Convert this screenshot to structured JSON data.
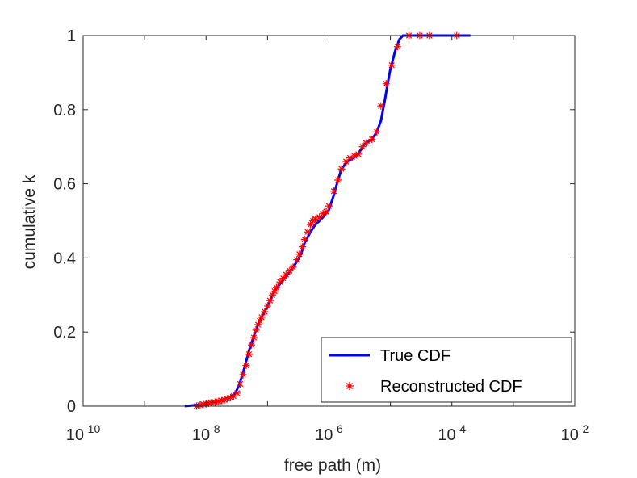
{
  "chart_data": {
    "type": "line",
    "xscale": "log",
    "xlabel": "free path (m)",
    "ylabel": "cumulative k",
    "xlim": [
      1e-10,
      0.01
    ],
    "ylim": [
      0,
      1
    ],
    "x_ticks": [
      {
        "base": "10",
        "exp": "-10",
        "value": 1e-10
      },
      {
        "base": "10",
        "exp": "-8",
        "value": 1e-08
      },
      {
        "base": "10",
        "exp": "-6",
        "value": 1e-06
      },
      {
        "base": "10",
        "exp": "-4",
        "value": 0.0001
      },
      {
        "base": "10",
        "exp": "-2",
        "value": 0.01
      }
    ],
    "y_ticks": [
      "0",
      "0.2",
      "0.4",
      "0.6",
      "0.8",
      "1"
    ],
    "grid": false,
    "legend_position": "bottom-right",
    "series": [
      {
        "name": "True CDF",
        "style": "line",
        "color": "#0000ff",
        "points": [
          [
            4.5e-09,
            0.0
          ],
          [
            7e-09,
            0.003
          ],
          [
            1e-08,
            0.006
          ],
          [
            1.5e-08,
            0.012
          ],
          [
            2e-08,
            0.018
          ],
          [
            2.5e-08,
            0.025
          ],
          [
            3e-08,
            0.035
          ],
          [
            3.5e-08,
            0.06
          ],
          [
            4e-08,
            0.09
          ],
          [
            5e-08,
            0.15
          ],
          [
            6e-08,
            0.19
          ],
          [
            7e-08,
            0.22
          ],
          [
            8e-08,
            0.24
          ],
          [
            1e-07,
            0.27
          ],
          [
            1.3e-07,
            0.31
          ],
          [
            1.6e-07,
            0.33
          ],
          [
            2e-07,
            0.35
          ],
          [
            2.5e-07,
            0.37
          ],
          [
            3e-07,
            0.39
          ],
          [
            3.5e-07,
            0.41
          ],
          [
            4e-07,
            0.44
          ],
          [
            5e-07,
            0.47
          ],
          [
            6e-07,
            0.49
          ],
          [
            7e-07,
            0.5
          ],
          [
            8e-07,
            0.51
          ],
          [
            1e-06,
            0.53
          ],
          [
            1.2e-06,
            0.57
          ],
          [
            1.4e-06,
            0.61
          ],
          [
            1.6e-06,
            0.64
          ],
          [
            2e-06,
            0.66
          ],
          [
            2.5e-06,
            0.67
          ],
          [
            3e-06,
            0.68
          ],
          [
            3.5e-06,
            0.7
          ],
          [
            4e-06,
            0.71
          ],
          [
            5e-06,
            0.72
          ],
          [
            6e-06,
            0.74
          ],
          [
            7e-06,
            0.77
          ],
          [
            8e-06,
            0.82
          ],
          [
            9e-06,
            0.87
          ],
          [
            1e-05,
            0.91
          ],
          [
            1.2e-05,
            0.96
          ],
          [
            1.4e-05,
            0.99
          ],
          [
            1.6e-05,
            1.0
          ],
          [
            0.0002,
            1.0
          ]
        ]
      },
      {
        "name": "Reconstructed CDF",
        "style": "marker",
        "marker": "asterisk",
        "color": "#ff0000",
        "points": [
          [
            7e-09,
            0.0
          ],
          [
            8e-09,
            0.003
          ],
          [
            9e-09,
            0.005
          ],
          [
            1e-08,
            0.006
          ],
          [
            1.1e-08,
            0.008
          ],
          [
            1.2e-08,
            0.009
          ],
          [
            1.4e-08,
            0.011
          ],
          [
            1.6e-08,
            0.013
          ],
          [
            1.8e-08,
            0.015
          ],
          [
            2e-08,
            0.017
          ],
          [
            2.2e-08,
            0.02
          ],
          [
            2.5e-08,
            0.023
          ],
          [
            2.8e-08,
            0.027
          ],
          [
            3.2e-08,
            0.035
          ],
          [
            3.6e-08,
            0.06
          ],
          [
            4e-08,
            0.085
          ],
          [
            4.5e-08,
            0.11
          ],
          [
            5e-08,
            0.14
          ],
          [
            5.5e-08,
            0.165
          ],
          [
            6e-08,
            0.185
          ],
          [
            6.5e-08,
            0.205
          ],
          [
            7e-08,
            0.22
          ],
          [
            7.5e-08,
            0.23
          ],
          [
            8e-08,
            0.24
          ],
          [
            9e-08,
            0.255
          ],
          [
            1e-07,
            0.27
          ],
          [
            1.1e-07,
            0.285
          ],
          [
            1.2e-07,
            0.3
          ],
          [
            1.3e-07,
            0.31
          ],
          [
            1.4e-07,
            0.32
          ],
          [
            1.6e-07,
            0.335
          ],
          [
            1.8e-07,
            0.345
          ],
          [
            2e-07,
            0.355
          ],
          [
            2.3e-07,
            0.365
          ],
          [
            2.6e-07,
            0.375
          ],
          [
            3e-07,
            0.395
          ],
          [
            3.3e-07,
            0.41
          ],
          [
            3.7e-07,
            0.43
          ],
          [
            4e-07,
            0.45
          ],
          [
            4.5e-07,
            0.47
          ],
          [
            5e-07,
            0.49
          ],
          [
            5.5e-07,
            0.5
          ],
          [
            6e-07,
            0.505
          ],
          [
            7e-07,
            0.51
          ],
          [
            8e-07,
            0.52
          ],
          [
            9e-07,
            0.525
          ],
          [
            1e-06,
            0.54
          ],
          [
            1.2e-06,
            0.58
          ],
          [
            1.4e-06,
            0.61
          ],
          [
            1.6e-06,
            0.64
          ],
          [
            1.9e-06,
            0.66
          ],
          [
            2.2e-06,
            0.67
          ],
          [
            2.6e-06,
            0.675
          ],
          [
            3e-06,
            0.68
          ],
          [
            3.5e-06,
            0.7
          ],
          [
            4e-06,
            0.71
          ],
          [
            5e-06,
            0.72
          ],
          [
            6e-06,
            0.74
          ],
          [
            7e-06,
            0.81
          ],
          [
            8.5e-06,
            0.87
          ],
          [
            1.05e-05,
            0.92
          ],
          [
            1.3e-05,
            0.97
          ],
          [
            2e-05,
            1.0
          ],
          [
            3e-05,
            1.0
          ],
          [
            4.3e-05,
            1.0
          ],
          [
            0.00012,
            1.0
          ]
        ]
      }
    ]
  }
}
